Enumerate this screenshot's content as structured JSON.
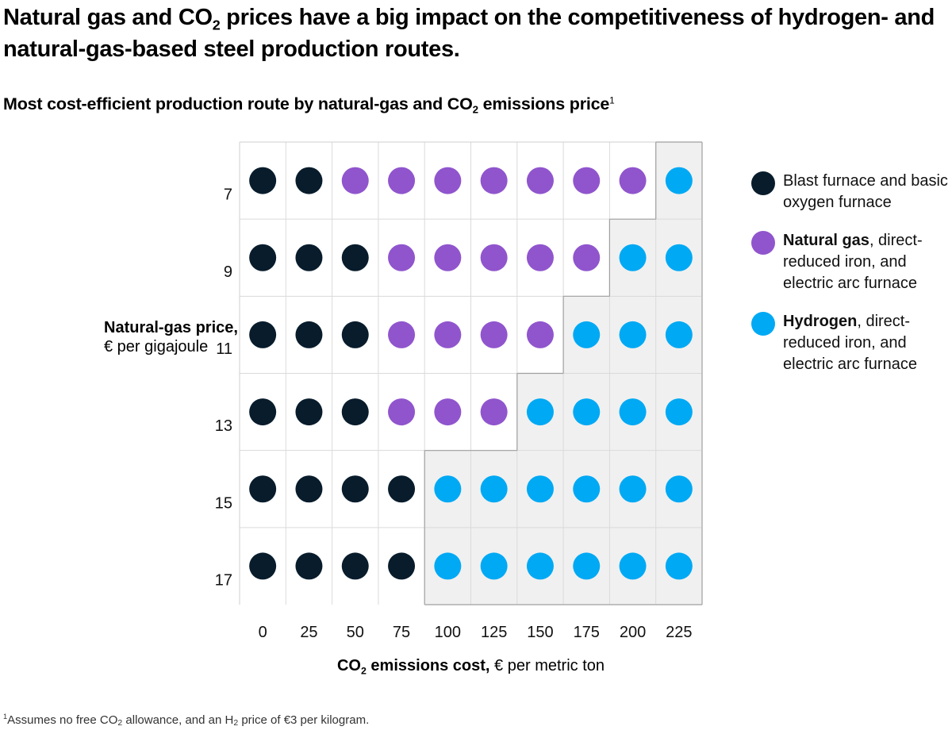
{
  "header": {
    "title_parts": [
      "Natural gas and CO",
      "2",
      " prices have a big impact on the competitiveness of hydrogen- and natural-gas-based steel production routes."
    ],
    "subtitle_parts": [
      "Most cost-efficient production route by natural-gas and CO",
      "2",
      " emissions price",
      "1"
    ]
  },
  "colors": {
    "bf_bof": "#081c2c",
    "ng_dri_eaf": "#9055cd",
    "h2_dri_eaf": "#00a9f4",
    "shade": "#f0f0f0",
    "gridline": "#dadada",
    "boundary": "#a0a0a0"
  },
  "chart_data": {
    "type": "heatmap",
    "title": "Most cost-efficient production route by natural-gas and CO2 emissions price",
    "xlabel": "CO2 emissions cost, € per metric ton",
    "ylabel": "Natural-gas price, € per gigajoule",
    "x": [
      0,
      25,
      50,
      75,
      100,
      125,
      150,
      175,
      200,
      225
    ],
    "y": [
      7,
      9,
      11,
      13,
      15,
      17
    ],
    "series": [
      {
        "key": "bf_bof",
        "name": "Blast furnace and basic oxygen furnace"
      },
      {
        "key": "ng_dri_eaf",
        "name": "Natural gas, direct-reduced iron, and electric arc furnace"
      },
      {
        "key": "h2_dri_eaf",
        "name": "Hydrogen, direct-reduced iron, and electric arc furnace"
      }
    ],
    "values": [
      [
        "bf_bof",
        "bf_bof",
        "ng_dri_eaf",
        "ng_dri_eaf",
        "ng_dri_eaf",
        "ng_dri_eaf",
        "ng_dri_eaf",
        "ng_dri_eaf",
        "ng_dri_eaf",
        "h2_dri_eaf"
      ],
      [
        "bf_bof",
        "bf_bof",
        "bf_bof",
        "ng_dri_eaf",
        "ng_dri_eaf",
        "ng_dri_eaf",
        "ng_dri_eaf",
        "ng_dri_eaf",
        "h2_dri_eaf",
        "h2_dri_eaf"
      ],
      [
        "bf_bof",
        "bf_bof",
        "bf_bof",
        "ng_dri_eaf",
        "ng_dri_eaf",
        "ng_dri_eaf",
        "ng_dri_eaf",
        "h2_dri_eaf",
        "h2_dri_eaf",
        "h2_dri_eaf"
      ],
      [
        "bf_bof",
        "bf_bof",
        "bf_bof",
        "ng_dri_eaf",
        "ng_dri_eaf",
        "ng_dri_eaf",
        "h2_dri_eaf",
        "h2_dri_eaf",
        "h2_dri_eaf",
        "h2_dri_eaf"
      ],
      [
        "bf_bof",
        "bf_bof",
        "bf_bof",
        "bf_bof",
        "h2_dri_eaf",
        "h2_dri_eaf",
        "h2_dri_eaf",
        "h2_dri_eaf",
        "h2_dri_eaf",
        "h2_dri_eaf"
      ],
      [
        "bf_bof",
        "bf_bof",
        "bf_bof",
        "bf_bof",
        "h2_dri_eaf",
        "h2_dri_eaf",
        "h2_dri_eaf",
        "h2_dri_eaf",
        "h2_dri_eaf",
        "h2_dri_eaf"
      ]
    ],
    "shaded_region": "cells where hydrogen route is most cost-efficient",
    "grid": true,
    "legend_position": "right"
  },
  "axes": {
    "y_title_bold": "Natural-gas price,",
    "y_title_rest": "€ per gigajoule",
    "x_title_bold_parts": [
      "CO",
      "2",
      " emissions cost,"
    ],
    "x_title_rest": " € per metric ton"
  },
  "legend": [
    {
      "key": "bf_bof",
      "bold": "",
      "text": "Blast furnace and basic oxygen furnace"
    },
    {
      "key": "ng_dri_eaf",
      "bold": "Natural gas",
      "text": ", direct-reduced iron, and electric arc furnace"
    },
    {
      "key": "h2_dri_eaf",
      "bold": "Hydrogen",
      "text": ", direct-reduced iron, and electric arc furnace"
    }
  ],
  "footnote": {
    "parts": [
      "1",
      "Assumes no free CO",
      "2",
      " allowance, and an H",
      "2",
      " price of €3 per kilogram."
    ]
  }
}
